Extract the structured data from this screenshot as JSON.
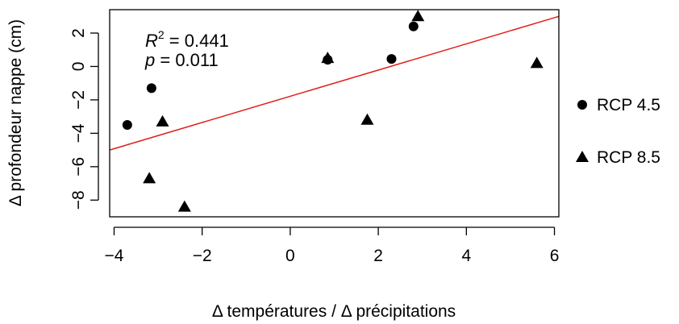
{
  "chart_data": {
    "type": "scatter",
    "xlabel": "Δ températures / Δ précipitations",
    "ylabel": "Δ profondeur nappe (cm)",
    "xlim": [
      -4.1,
      6.1
    ],
    "ylim": [
      -9.0,
      3.4
    ],
    "x_ticks": [
      -4,
      -2,
      0,
      2,
      4,
      6
    ],
    "x_tick_labels": [
      "−4",
      "−2",
      "0",
      "2",
      "4",
      "6"
    ],
    "y_ticks": [
      -8,
      -6,
      -4,
      -2,
      0,
      2
    ],
    "y_tick_labels": [
      "−8",
      "−6",
      "−4",
      "−2",
      "0",
      "2"
    ],
    "grid": false,
    "legend_position": "right",
    "series": [
      {
        "name": "RCP 4.5",
        "marker": "circle",
        "color": "#000000",
        "points": [
          {
            "x": -3.7,
            "y": -3.5
          },
          {
            "x": -3.15,
            "y": -1.3
          },
          {
            "x": 0.85,
            "y": 0.4
          },
          {
            "x": 2.3,
            "y": 0.45
          },
          {
            "x": 2.8,
            "y": 2.4
          }
        ]
      },
      {
        "name": "RCP 8.5",
        "marker": "triangle",
        "color": "#000000",
        "points": [
          {
            "x": -3.2,
            "y": -6.7
          },
          {
            "x": -2.9,
            "y": -3.3
          },
          {
            "x": -2.4,
            "y": -8.4
          },
          {
            "x": 0.85,
            "y": 0.5
          },
          {
            "x": 1.75,
            "y": -3.2
          },
          {
            "x": 2.9,
            "y": 3.0
          },
          {
            "x": 5.6,
            "y": 0.2
          }
        ]
      }
    ],
    "regression": {
      "color": "#e0201b",
      "x0": -4.1,
      "y0": -5.0,
      "x1": 6.1,
      "y1": 3.0
    },
    "annotation": {
      "r2_symbol": "R",
      "r2_sup": "2",
      "r2_value": " = 0.441",
      "p_symbol": "p",
      "p_value": " = 0.011"
    }
  }
}
